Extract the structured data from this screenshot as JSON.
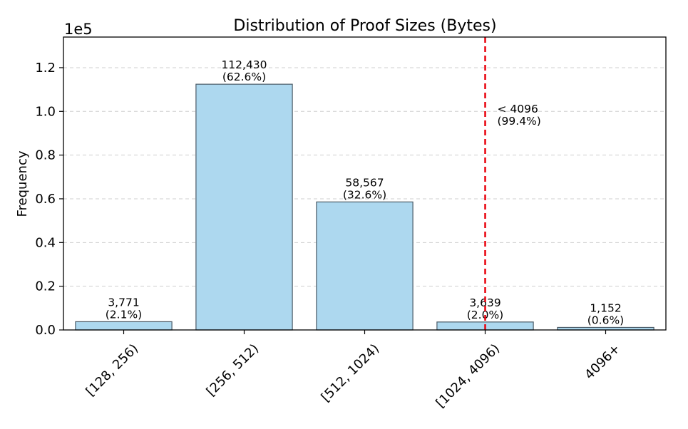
{
  "chart_data": {
    "type": "bar",
    "title": "Distribution of Proof Sizes (Bytes)",
    "xlabel": "",
    "ylabel": "Frequency",
    "y_multiplier_label": "1e5",
    "ylim": [
      0,
      134000
    ],
    "y_ticks": [
      0,
      20000,
      40000,
      60000,
      80000,
      100000,
      120000
    ],
    "y_tick_labels": [
      "0.0",
      "0.2",
      "0.4",
      "0.6",
      "0.8",
      "1.0",
      "1.2"
    ],
    "grid": "y-dashed",
    "categories": [
      "[128, 256)",
      "[256, 512)",
      "[512, 1024)",
      "[1024, 4096)",
      "4096+"
    ],
    "values": [
      3771,
      112430,
      58567,
      3639,
      1152
    ],
    "value_labels": [
      "3,771",
      "112,430",
      "58,567",
      "3,639",
      "1,152"
    ],
    "percent_labels": [
      "(2.1%)",
      "(62.6%)",
      "(32.6%)",
      "(2.0%)",
      "(0.6%)"
    ],
    "bar_color": "#add8ef",
    "bar_edge_color": "#4a5a66",
    "threshold": {
      "category_position": 3.5,
      "color": "#e8000b",
      "label_line1": "< 4096",
      "label_line2": "(99.4%)"
    }
  }
}
